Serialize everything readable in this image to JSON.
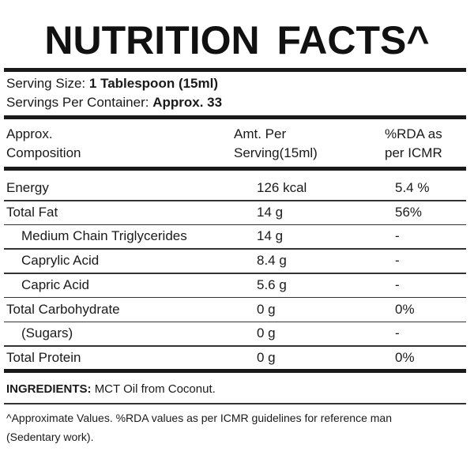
{
  "title": "NUTRITION FACTS^",
  "serving": {
    "size_label": "Serving Size:",
    "size_value": "1 Tablespoon (15ml)",
    "per_container_label": "Servings Per Container:",
    "per_container_value": "Approx. 33"
  },
  "table": {
    "headers": [
      [
        "Approx.",
        "Composition"
      ],
      [
        "Amt. Per",
        "Serving(15ml)"
      ],
      [
        "%RDA as",
        "per ICMR"
      ]
    ],
    "rows": [
      {
        "name": "Energy",
        "amount": "126 kcal",
        "rda": "5.4 %",
        "sub": false
      },
      {
        "name": "Total Fat",
        "amount": "14 g",
        "rda": "56%",
        "sub": false
      },
      {
        "name": "Medium Chain Triglycerides",
        "amount": "14 g",
        "rda": "-",
        "sub": true
      },
      {
        "name": "Caprylic Acid",
        "amount": "8.4 g",
        "rda": "-",
        "sub": true
      },
      {
        "name": "Capric Acid",
        "amount": "5.6 g",
        "rda": "-",
        "sub": true
      },
      {
        "name": "Total Carbohydrate",
        "amount": "0 g",
        "rda": "0%",
        "sub": false
      },
      {
        "name": "(Sugars)",
        "amount": "0 g",
        "rda": "-",
        "sub": true
      },
      {
        "name": "Total Protein",
        "amount": "0 g",
        "rda": "0%",
        "sub": false
      }
    ]
  },
  "ingredients": {
    "label": "INGREDIENTS:",
    "value": "MCT Oil from Coconut."
  },
  "footnote": [
    "^Approximate Values. %RDA values as per ICMR guidelines for reference man",
    "(Sedentary work)."
  ]
}
